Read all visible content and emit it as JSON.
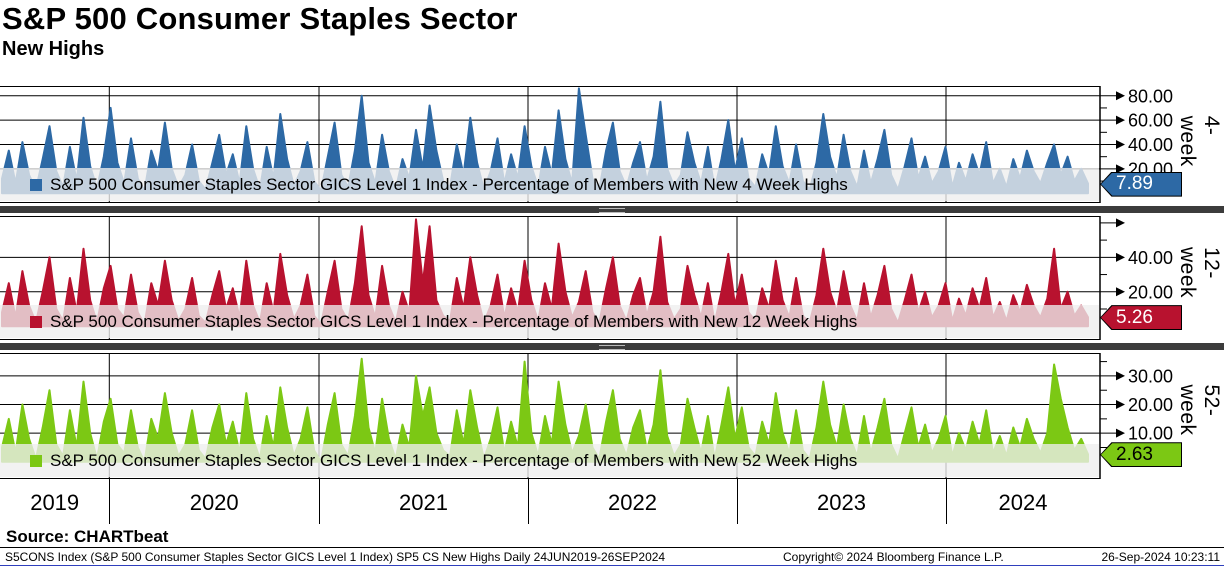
{
  "header": {
    "title": "S&P 500 Consumer Staples Sector",
    "subtitle": "New Highs"
  },
  "source_line": "Source: CHARTbeat",
  "footer": {
    "left": "S5CONS Index (S&P 500 Consumer Staples Sector GICS Level 1 Index) SP5 CS New Highs  Daily 24JUN2019-26SEP2024",
    "center": "Copyright© 2024 Bloomberg Finance L.P.",
    "right": "26-Sep-2024 10:23:11"
  },
  "x_axis": {
    "years": [
      "2019",
      "2020",
      "2021",
      "2022",
      "2023",
      "2024"
    ],
    "year_fracs": [
      0.0994,
      0.29,
      0.48,
      0.67,
      0.86
    ],
    "date_range": "24JUN2019-26SEP2024"
  },
  "chart_data": {
    "type": "line",
    "title": "S&P 500 Consumer Staples Sector - New Highs",
    "frequency": "Daily",
    "panels": [
      {
        "id": "4-week",
        "panel_label": "4-week",
        "legend": "S&P 500 Consumer Staples Sector GICS Level 1 Index - Percentage of Members with New 4 Week Highs",
        "color": "#2d69a5",
        "badge_text_color": "#ffffff",
        "last_value": "7.89",
        "ylim": [
          -8,
          88
        ],
        "yticks_labeled": [
          20,
          40,
          60,
          80
        ],
        "yticks_minor": [
          10,
          30,
          50,
          70
        ],
        "yticks_arrow": [],
        "values": [
          12,
          35,
          8,
          42,
          15,
          3,
          28,
          55,
          18,
          5,
          38,
          10,
          62,
          22,
          4,
          30,
          70,
          25,
          8,
          45,
          12,
          2,
          35,
          18,
          58,
          20,
          5,
          15,
          40,
          10,
          3,
          25,
          48,
          15,
          32,
          8,
          55,
          20,
          3,
          38,
          12,
          65,
          28,
          6,
          18,
          42,
          10,
          2,
          30,
          58,
          15,
          5,
          35,
          80,
          25,
          8,
          48,
          18,
          3,
          28,
          12,
          52,
          20,
          72,
          35,
          10,
          5,
          40,
          15,
          62,
          25,
          3,
          18,
          45,
          8,
          32,
          12,
          55,
          22,
          5,
          38,
          15,
          68,
          28,
          8,
          86,
          48,
          12,
          3,
          35,
          58,
          18,
          5,
          25,
          42,
          10,
          30,
          75,
          20,
          6,
          15,
          50,
          25,
          8,
          38,
          3,
          28,
          60,
          18,
          45,
          12,
          5,
          32,
          15,
          55,
          22,
          8,
          40,
          10,
          3,
          25,
          65,
          30,
          12,
          48,
          18,
          5,
          35,
          8,
          28,
          52,
          15,
          3,
          22,
          45,
          12,
          30,
          8,
          18,
          38,
          5,
          25,
          10,
          32,
          15,
          42,
          8,
          20,
          5,
          28,
          12,
          35,
          18,
          8,
          25,
          40,
          15,
          30,
          10,
          20,
          7.89
        ]
      },
      {
        "id": "12-week",
        "panel_label": "12-week",
        "legend": "S&P 500 Consumer Staples Sector GICS Level 1 Index - Percentage of Members with New 12 Week Highs",
        "color": "#b8122f",
        "badge_text_color": "#ffffff",
        "last_value": "5.26",
        "ylim": [
          -8,
          64
        ],
        "yticks_labeled": [
          20,
          40
        ],
        "yticks_minor": [
          10,
          30,
          50
        ],
        "yticks_arrow": [
          60
        ],
        "values": [
          8,
          25,
          5,
          32,
          12,
          2,
          20,
          40,
          10,
          3,
          28,
          8,
          45,
          15,
          2,
          22,
          35,
          10,
          5,
          30,
          8,
          1,
          25,
          12,
          38,
          15,
          3,
          10,
          28,
          6,
          2,
          18,
          32,
          10,
          22,
          5,
          38,
          12,
          2,
          25,
          8,
          42,
          18,
          4,
          12,
          30,
          6,
          1,
          20,
          38,
          10,
          3,
          25,
          58,
          18,
          5,
          35,
          12,
          2,
          20,
          8,
          62,
          25,
          58,
          15,
          6,
          3,
          28,
          10,
          40,
          18,
          2,
          12,
          30,
          5,
          22,
          8,
          38,
          15,
          3,
          25,
          10,
          48,
          20,
          5,
          14,
          32,
          8,
          2,
          22,
          40,
          12,
          3,
          18,
          28,
          6,
          20,
          52,
          14,
          4,
          10,
          35,
          18,
          5,
          25,
          2,
          20,
          42,
          12,
          30,
          8,
          3,
          22,
          10,
          38,
          15,
          5,
          28,
          6,
          2,
          18,
          45,
          20,
          8,
          32,
          12,
          3,
          25,
          5,
          18,
          35,
          10,
          2,
          15,
          30,
          8,
          20,
          5,
          12,
          25,
          3,
          16,
          6,
          22,
          10,
          28,
          5,
          14,
          3,
          18,
          8,
          24,
          12,
          5,
          16,
          45,
          10,
          20,
          6,
          12,
          5.26
        ]
      },
      {
        "id": "52-week",
        "panel_label": "52-week",
        "legend": "S&P 500 Consumer Staples Sector GICS Level 1 Index - Percentage of Members with New 52 Week Highs",
        "color": "#7cc814",
        "badge_text_color": "#000000",
        "last_value": "2.63",
        "ylim": [
          -6,
          38
        ],
        "yticks_labeled": [
          10,
          20,
          30
        ],
        "yticks_minor": [
          5,
          15,
          25,
          35
        ],
        "yticks_arrow": [],
        "values": [
          5,
          15,
          3,
          20,
          8,
          1,
          12,
          25,
          6,
          2,
          18,
          5,
          28,
          10,
          1,
          14,
          22,
          6,
          3,
          18,
          5,
          0,
          15,
          8,
          24,
          10,
          2,
          6,
          18,
          4,
          1,
          12,
          20,
          6,
          14,
          3,
          24,
          8,
          1,
          16,
          5,
          26,
          12,
          2,
          8,
          19,
          4,
          0,
          13,
          24,
          6,
          2,
          16,
          36,
          12,
          3,
          22,
          8,
          1,
          13,
          5,
          30,
          16,
          26,
          10,
          4,
          2,
          18,
          6,
          25,
          12,
          1,
          8,
          19,
          3,
          14,
          5,
          35,
          10,
          2,
          16,
          6,
          28,
          13,
          3,
          9,
          20,
          5,
          1,
          14,
          25,
          8,
          2,
          12,
          18,
          4,
          13,
          32,
          9,
          2,
          6,
          22,
          12,
          3,
          16,
          1,
          13,
          26,
          8,
          19,
          5,
          2,
          14,
          6,
          24,
          10,
          3,
          18,
          4,
          1,
          12,
          28,
          13,
          5,
          20,
          8,
          2,
          16,
          3,
          12,
          22,
          6,
          1,
          10,
          19,
          5,
          13,
          3,
          8,
          16,
          2,
          10,
          4,
          14,
          6,
          18,
          3,
          9,
          2,
          12,
          5,
          15,
          8,
          3,
          10,
          34,
          22,
          12,
          4,
          8,
          2.63
        ]
      }
    ]
  }
}
